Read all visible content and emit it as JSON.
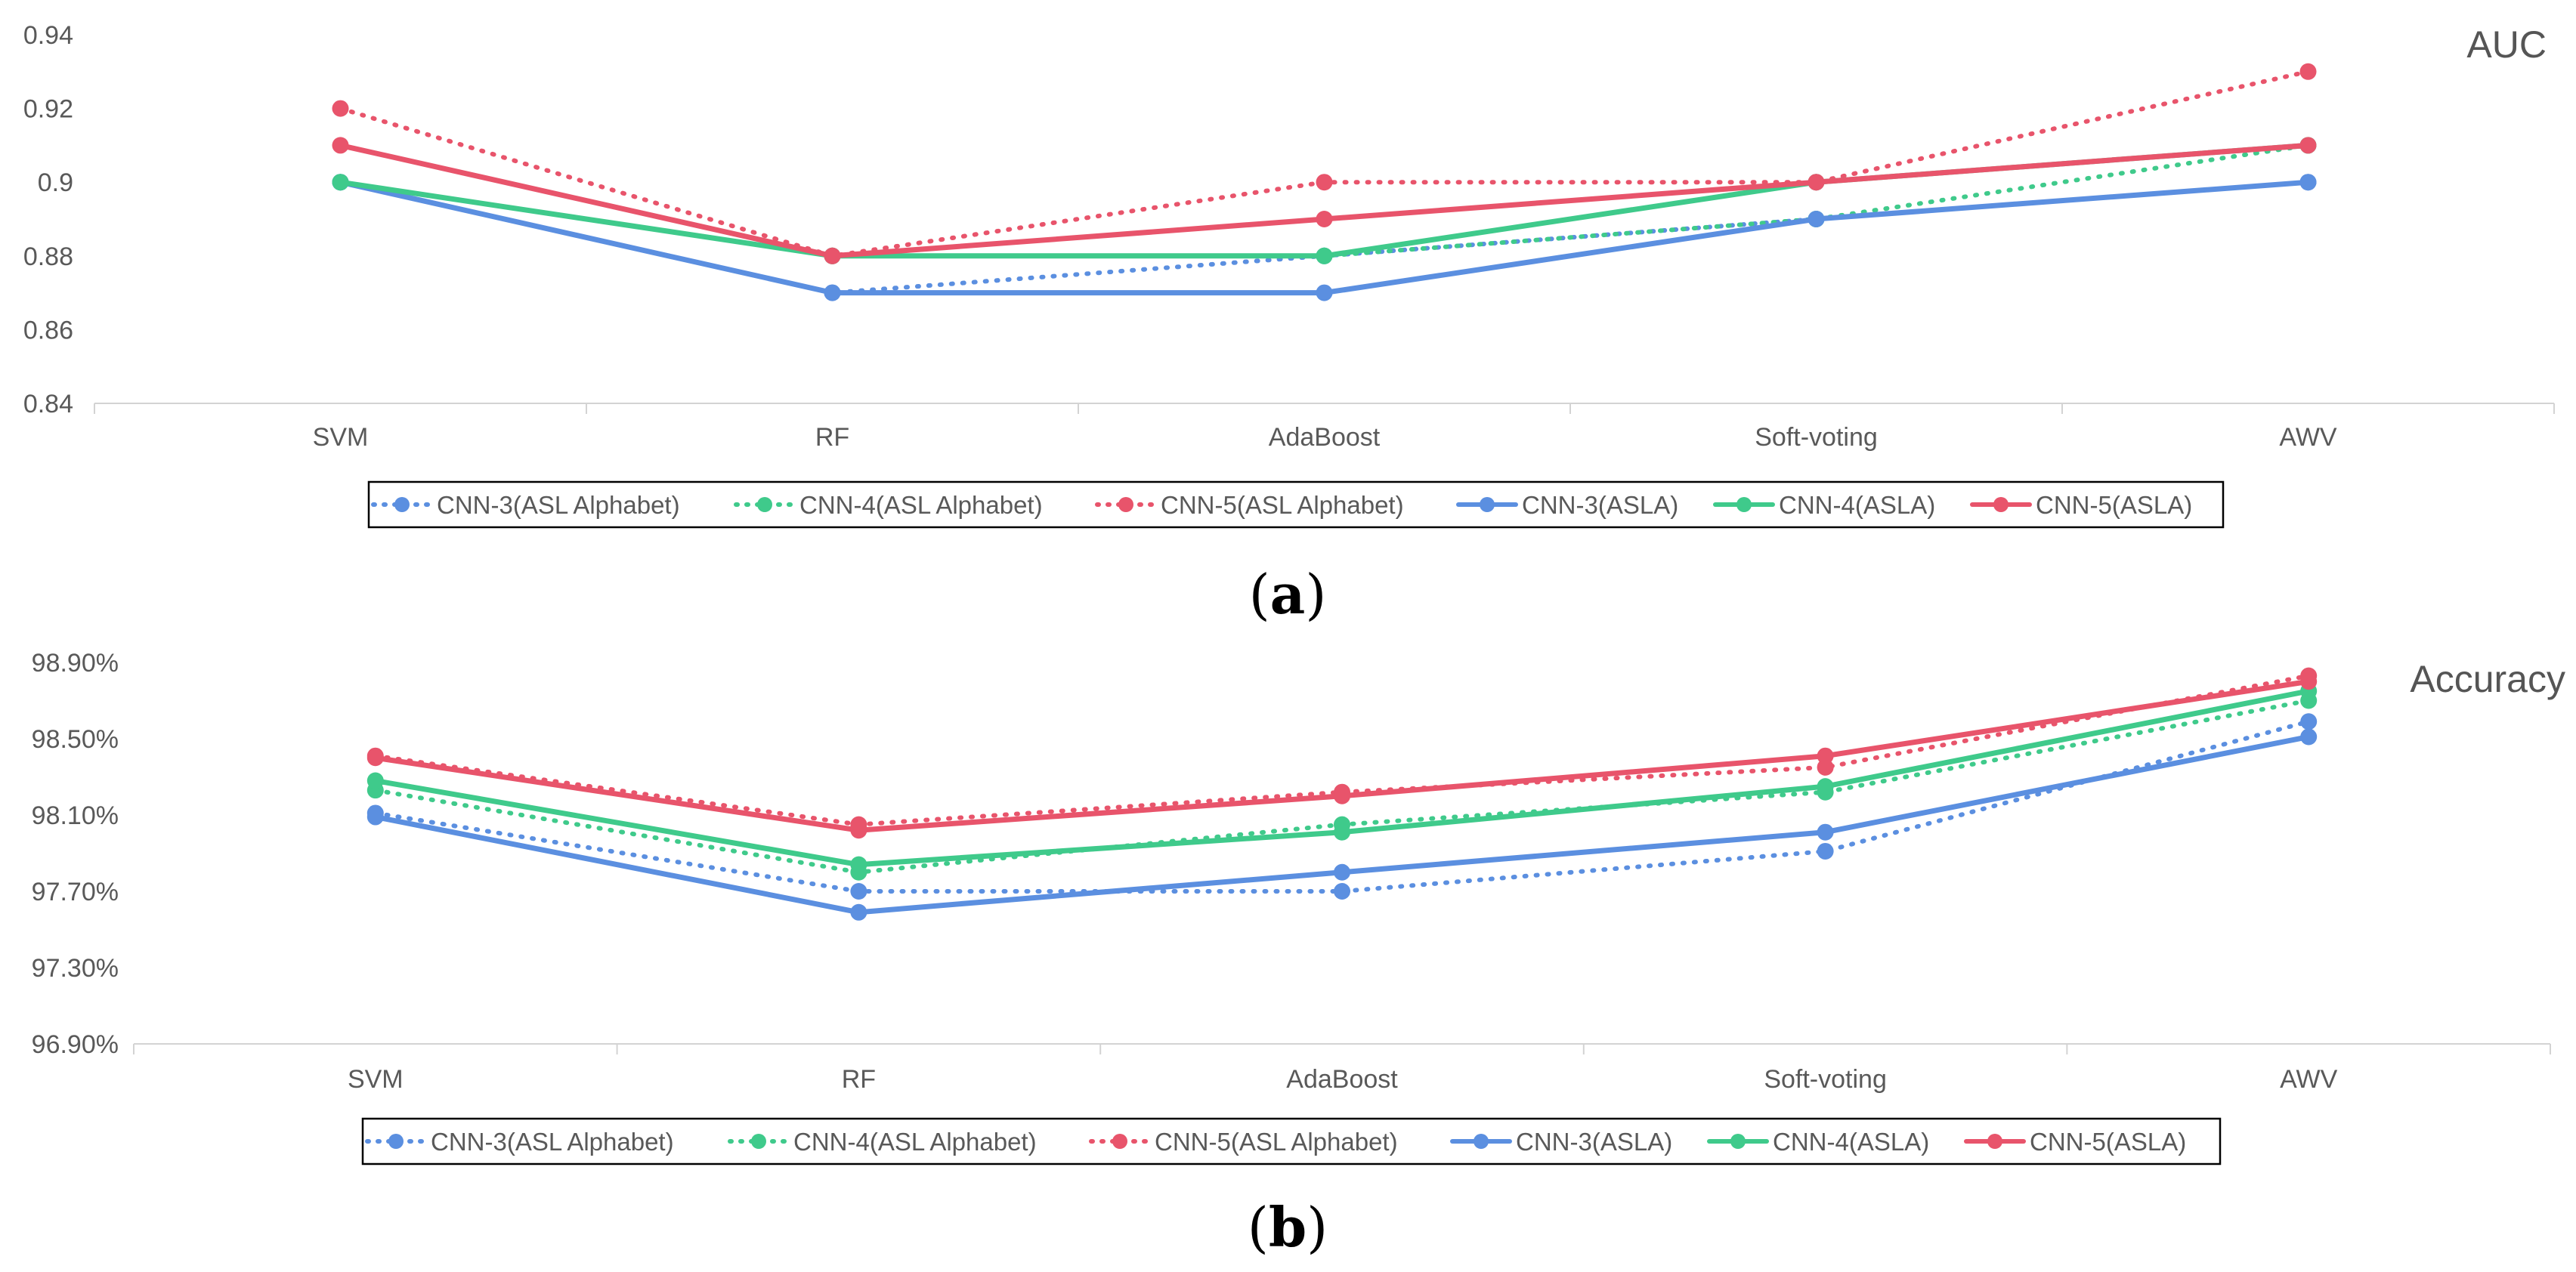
{
  "figure": {
    "panels": [
      {
        "label": "(a)",
        "label_letter": "a",
        "title": "AUC",
        "y_ticks": [
          "0.84",
          "0.86",
          "0.88",
          "0.9",
          "0.92",
          "0.94"
        ]
      },
      {
        "label": "(b)",
        "label_letter": "b",
        "title": "Accuracy",
        "y_ticks": [
          "96.90%",
          "97.30%",
          "97.70%",
          "98.10%",
          "98.50%",
          "98.90%"
        ]
      }
    ]
  },
  "chart_data": [
    {
      "type": "line",
      "title": "AUC",
      "xlabel": "",
      "ylabel": "",
      "categories": [
        "SVM",
        "RF",
        "AdaBoost",
        "Soft-voting",
        "AWV"
      ],
      "ylim": [
        0.84,
        0.94
      ],
      "grid": false,
      "legend_position": "bottom",
      "series": [
        {
          "name": "CNN-3(ASL Alphabet)",
          "style": "dotted",
          "color": "#5b8fe0",
          "values": [
            0.9,
            0.87,
            0.88,
            0.89,
            0.9
          ]
        },
        {
          "name": "CNN-4(ASL Alphabet)",
          "style": "dotted",
          "color": "#3fca8b",
          "values": [
            0.9,
            0.88,
            0.88,
            0.89,
            0.91
          ]
        },
        {
          "name": "CNN-5(ASL Alphabet)",
          "style": "dotted",
          "color": "#e8546b",
          "values": [
            0.92,
            0.88,
            0.9,
            0.9,
            0.93
          ]
        },
        {
          "name": "CNN-3(ASLA)",
          "style": "solid",
          "color": "#5b8fe0",
          "values": [
            0.9,
            0.87,
            0.87,
            0.89,
            0.9
          ]
        },
        {
          "name": "CNN-4(ASLA)",
          "style": "solid",
          "color": "#3fca8b",
          "values": [
            0.9,
            0.88,
            0.88,
            0.9,
            0.91
          ]
        },
        {
          "name": "CNN-5(ASLA)",
          "style": "solid",
          "color": "#e8546b",
          "values": [
            0.91,
            0.88,
            0.89,
            0.9,
            0.91
          ]
        }
      ]
    },
    {
      "type": "line",
      "title": "Accuracy",
      "xlabel": "",
      "ylabel": "",
      "categories": [
        "SVM",
        "RF",
        "AdaBoost",
        "Soft-voting",
        "AWV"
      ],
      "ylim": [
        96.9,
        98.9
      ],
      "y_unit": "%",
      "grid": false,
      "legend_position": "bottom",
      "series": [
        {
          "name": "CNN-3(ASL Alphabet)",
          "style": "dotted",
          "color": "#5b8fe0",
          "values": [
            98.11,
            97.7,
            97.7,
            97.91,
            98.59
          ]
        },
        {
          "name": "CNN-4(ASL Alphabet)",
          "style": "dotted",
          "color": "#3fca8b",
          "values": [
            98.23,
            97.8,
            98.05,
            98.22,
            98.7
          ]
        },
        {
          "name": "CNN-5(ASL Alphabet)",
          "style": "dotted",
          "color": "#e8546b",
          "values": [
            98.41,
            98.05,
            98.22,
            98.35,
            98.83
          ]
        },
        {
          "name": "CNN-3(ASLA)",
          "style": "solid",
          "color": "#5b8fe0",
          "values": [
            98.09,
            97.59,
            97.8,
            98.01,
            98.51
          ]
        },
        {
          "name": "CNN-4(ASLA)",
          "style": "solid",
          "color": "#3fca8b",
          "values": [
            98.28,
            97.84,
            98.01,
            98.25,
            98.75
          ]
        },
        {
          "name": "CNN-5(ASLA)",
          "style": "solid",
          "color": "#e8546b",
          "values": [
            98.4,
            98.02,
            98.2,
            98.41,
            98.8
          ]
        }
      ]
    }
  ]
}
